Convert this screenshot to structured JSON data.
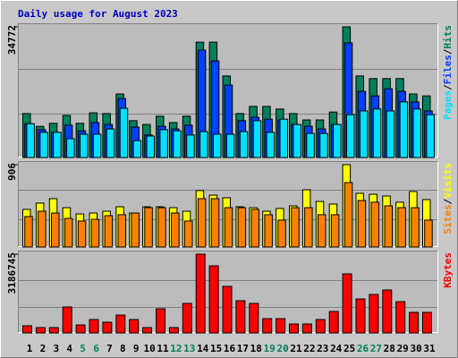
{
  "chart_data": [
    {
      "type": "bar",
      "title": "Daily usage for August 2023",
      "legend_separator": "/",
      "ylim": [
        0,
        34772
      ],
      "yticks": [
        34772
      ],
      "series": [
        {
          "name": "Hits",
          "color": "#00805c",
          "values": [
            11700,
            8300,
            9100,
            11200,
            9100,
            11900,
            11700,
            16900,
            9800,
            8800,
            11000,
            9300,
            11000,
            30700,
            30700,
            21700,
            11700,
            13600,
            13600,
            12900,
            11700,
            10000,
            10000,
            12100,
            34772,
            21700,
            21000,
            21000,
            21000,
            16900,
            16400
          ]
        },
        {
          "name": "Files",
          "color": "#0040ff",
          "values": [
            9000,
            7400,
            6700,
            8600,
            7100,
            9300,
            8800,
            15700,
            8100,
            6000,
            8300,
            7600,
            8600,
            28600,
            25700,
            19300,
            9800,
            10700,
            10200,
            10000,
            8800,
            8300,
            7600,
            8800,
            30500,
            17600,
            16400,
            18300,
            17600,
            14800,
            12400
          ]
        },
        {
          "name": "Pages",
          "color": "#00e0ff",
          "values": [
            9000,
            6700,
            6700,
            5000,
            6200,
            6200,
            7600,
            13100,
            4500,
            5700,
            7400,
            7100,
            6000,
            6900,
            6200,
            6200,
            6900,
            9800,
            6700,
            10200,
            8800,
            6400,
            6400,
            8800,
            11400,
            12400,
            12900,
            12400,
            14800,
            12900,
            11400
          ]
        }
      ]
    },
    {
      "type": "bar",
      "legend_separator": "/",
      "ylim": [
        0,
        906
      ],
      "yticks": [
        906
      ],
      "series": [
        {
          "name": "Visits",
          "color": "#ffff00",
          "values": [
            414,
            483,
            532,
            433,
            364,
            374,
            394,
            443,
            374,
            443,
            443,
            433,
            394,
            621,
            571,
            542,
            443,
            433,
            394,
            424,
            453,
            630,
            502,
            473,
            906,
            591,
            581,
            561,
            493,
            611,
            522
          ]
        },
        {
          "name": "Sites",
          "color": "#ff8000",
          "values": [
            335,
            394,
            374,
            315,
            286,
            305,
            345,
            355,
            374,
            433,
            433,
            374,
            286,
            532,
            532,
            433,
            433,
            414,
            355,
            296,
            433,
            433,
            355,
            355,
            709,
            512,
            493,
            453,
            433,
            433,
            296
          ]
        }
      ]
    },
    {
      "type": "bar",
      "ylim": [
        0,
        3186745
      ],
      "yticks": [
        3186745
      ],
      "categories": [
        "1",
        "2",
        "3",
        "4",
        "5",
        "6",
        "7",
        "8",
        "9",
        "10",
        "11",
        "12",
        "13",
        "14",
        "15",
        "16",
        "17",
        "18",
        "19",
        "20",
        "21",
        "22",
        "23",
        "24",
        "25",
        "26",
        "27",
        "28",
        "29",
        "30",
        "31"
      ],
      "category_colors": [
        "#000000",
        "#000000",
        "#000000",
        "#000000",
        "#00805c",
        "#00805c",
        "#000000",
        "#000000",
        "#000000",
        "#000000",
        "#000000",
        "#00805c",
        "#00805c",
        "#000000",
        "#000000",
        "#000000",
        "#000000",
        "#000000",
        "#00805c",
        "#00805c",
        "#000000",
        "#000000",
        "#000000",
        "#000000",
        "#000000",
        "#00805c",
        "#00805c",
        "#000000",
        "#000000",
        "#000000",
        "#000000"
      ],
      "series": [
        {
          "name": "KBytes",
          "color": "#ff0000",
          "values": [
            290000,
            217000,
            217000,
            1050000,
            326000,
            543000,
            435000,
            724000,
            543000,
            217000,
            978000,
            217000,
            1195000,
            3186745,
            2716000,
            1883000,
            1304000,
            1195000,
            579000,
            579000,
            362000,
            362000,
            543000,
            869000,
            2390000,
            1376000,
            1557000,
            1738000,
            1267000,
            833000,
            833000
          ]
        }
      ]
    }
  ]
}
